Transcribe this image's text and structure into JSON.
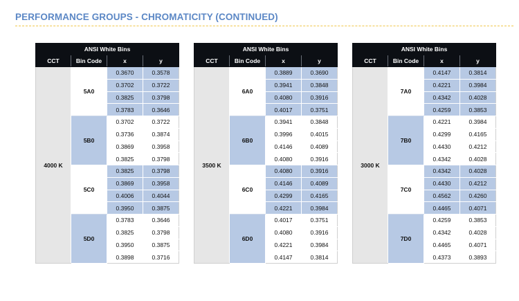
{
  "page": {
    "title": "PERFORMANCE GROUPS - CHROMATICITY (CONTINUED)"
  },
  "header": {
    "title": "ANSI White Bins",
    "col_cct": "CCT",
    "col_bin": "Bin Code",
    "col_x": "x",
    "col_y": "y"
  },
  "tables": [
    {
      "cct": "4000 K",
      "bins": [
        {
          "code": "5A0",
          "rows": [
            [
              "0.3670",
              "0.3578"
            ],
            [
              "0.3702",
              "0.3722"
            ],
            [
              "0.3825",
              "0.3798"
            ],
            [
              "0.3783",
              "0.3646"
            ]
          ]
        },
        {
          "code": "5B0",
          "rows": [
            [
              "0.3702",
              "0.3722"
            ],
            [
              "0.3736",
              "0.3874"
            ],
            [
              "0.3869",
              "0.3958"
            ],
            [
              "0.3825",
              "0.3798"
            ]
          ]
        },
        {
          "code": "5C0",
          "rows": [
            [
              "0.3825",
              "0.3798"
            ],
            [
              "0.3869",
              "0.3958"
            ],
            [
              "0.4006",
              "0.4044"
            ],
            [
              "0.3950",
              "0.3875"
            ]
          ]
        },
        {
          "code": "5D0",
          "rows": [
            [
              "0.3783",
              "0.3646"
            ],
            [
              "0.3825",
              "0.3798"
            ],
            [
              "0.3950",
              "0.3875"
            ],
            [
              "0.3898",
              "0.3716"
            ]
          ]
        }
      ]
    },
    {
      "cct": "3500 K",
      "bins": [
        {
          "code": "6A0",
          "rows": [
            [
              "0.3889",
              "0.3690"
            ],
            [
              "0.3941",
              "0.3848"
            ],
            [
              "0.4080",
              "0.3916"
            ],
            [
              "0.4017",
              "0.3751"
            ]
          ]
        },
        {
          "code": "6B0",
          "rows": [
            [
              "0.3941",
              "0.3848"
            ],
            [
              "0.3996",
              "0.4015"
            ],
            [
              "0.4146",
              "0.4089"
            ],
            [
              "0.4080",
              "0.3916"
            ]
          ]
        },
        {
          "code": "6C0",
          "rows": [
            [
              "0.4080",
              "0.3916"
            ],
            [
              "0.4146",
              "0.4089"
            ],
            [
              "0.4299",
              "0.4165"
            ],
            [
              "0.4221",
              "0.3984"
            ]
          ]
        },
        {
          "code": "6D0",
          "rows": [
            [
              "0.4017",
              "0.3751"
            ],
            [
              "0.4080",
              "0.3916"
            ],
            [
              "0.4221",
              "0.3984"
            ],
            [
              "0.4147",
              "0.3814"
            ]
          ]
        }
      ]
    },
    {
      "cct": "3000 K",
      "bins": [
        {
          "code": "7A0",
          "rows": [
            [
              "0.4147",
              "0.3814"
            ],
            [
              "0.4221",
              "0.3984"
            ],
            [
              "0.4342",
              "0.4028"
            ],
            [
              "0.4259",
              "0.3853"
            ]
          ]
        },
        {
          "code": "7B0",
          "rows": [
            [
              "0.4221",
              "0.3984"
            ],
            [
              "0.4299",
              "0.4165"
            ],
            [
              "0.4430",
              "0.4212"
            ],
            [
              "0.4342",
              "0.4028"
            ]
          ]
        },
        {
          "code": "7C0",
          "rows": [
            [
              "0.4342",
              "0.4028"
            ],
            [
              "0.4430",
              "0.4212"
            ],
            [
              "0.4562",
              "0.4260"
            ],
            [
              "0.4465",
              "0.4071"
            ]
          ]
        },
        {
          "code": "7D0",
          "rows": [
            [
              "0.4259",
              "0.3853"
            ],
            [
              "0.4342",
              "0.4028"
            ],
            [
              "0.4465",
              "0.4071"
            ],
            [
              "0.4373",
              "0.3893"
            ]
          ]
        }
      ]
    }
  ]
}
